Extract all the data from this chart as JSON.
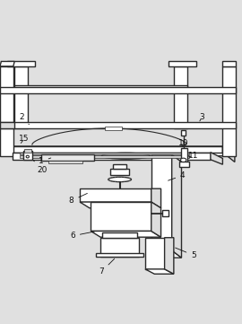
{
  "bg_color": "#e0e0e0",
  "line_color": "#2a2a2a",
  "line_width": 1.0,
  "thin_line": 0.5,
  "labels_pos": {
    "1": [
      0.17,
      0.503,
      0.22,
      0.52
    ],
    "2": [
      0.09,
      0.685,
      0.12,
      0.655
    ],
    "3": [
      0.835,
      0.685,
      0.82,
      0.66
    ],
    "4": [
      0.755,
      0.445,
      0.685,
      0.42
    ],
    "5": [
      0.8,
      0.115,
      0.715,
      0.15
    ],
    "6": [
      0.3,
      0.195,
      0.4,
      0.215
    ],
    "7": [
      0.42,
      0.048,
      0.48,
      0.108
    ],
    "8": [
      0.295,
      0.34,
      0.37,
      0.375
    ],
    "10": [
      0.76,
      0.578,
      0.755,
      0.565
    ],
    "11": [
      0.8,
      0.525,
      0.77,
      0.52
    ],
    "15": [
      0.1,
      0.595,
      0.08,
      0.57
    ],
    "20": [
      0.175,
      0.468,
      0.13,
      0.515
    ]
  }
}
